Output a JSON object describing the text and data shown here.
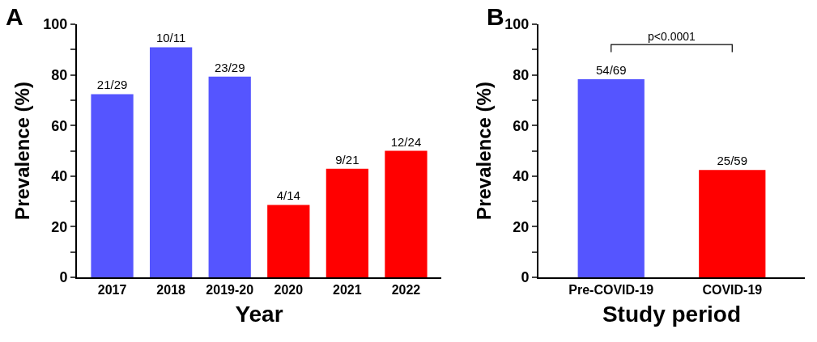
{
  "chart_data": [
    {
      "type": "bar",
      "title": "A",
      "xlabel": "Year",
      "ylabel": "Prevalence (%)",
      "categories": [
        "2017",
        "2018",
        "2019-20",
        "2020",
        "2021",
        "2022"
      ],
      "values": [
        72.4,
        90.9,
        79.3,
        28.6,
        42.9,
        50.0
      ],
      "colors": [
        "#5555ff",
        "#5555ff",
        "#5555ff",
        "#ff0000",
        "#ff0000",
        "#ff0000"
      ],
      "value_labels": [
        "21/29",
        "10/11",
        "23/29",
        "4/14",
        "9/21",
        "12/24"
      ],
      "ylim": [
        0,
        100
      ],
      "yticks": [
        0,
        {
          "value": 10,
          "label": null
        },
        20,
        {
          "value": 30,
          "label": null
        },
        40,
        {
          "value": 50,
          "label": null
        },
        60,
        {
          "value": 70,
          "label": null
        },
        80,
        {
          "value": 90,
          "label": null
        },
        100
      ],
      "grid": false
    },
    {
      "type": "bar",
      "title": "B",
      "xlabel": "Study period",
      "ylabel": "Prevalence (%)",
      "categories": [
        "Pre-COVID-19",
        "COVID-19"
      ],
      "values": [
        78.3,
        42.4
      ],
      "colors": [
        "#5555ff",
        "#ff0000"
      ],
      "value_labels": [
        "54/69",
        "25/59"
      ],
      "annotations": [
        "p<0.0001"
      ],
      "ylim": [
        0,
        100
      ],
      "yticks": [
        0,
        {
          "value": 10,
          "label": null
        },
        20,
        {
          "value": 30,
          "label": null
        },
        40,
        {
          "value": 50,
          "label": null
        },
        60,
        {
          "value": 70,
          "label": null
        },
        80,
        {
          "value": 90,
          "label": null
        },
        100
      ],
      "grid": false
    }
  ]
}
